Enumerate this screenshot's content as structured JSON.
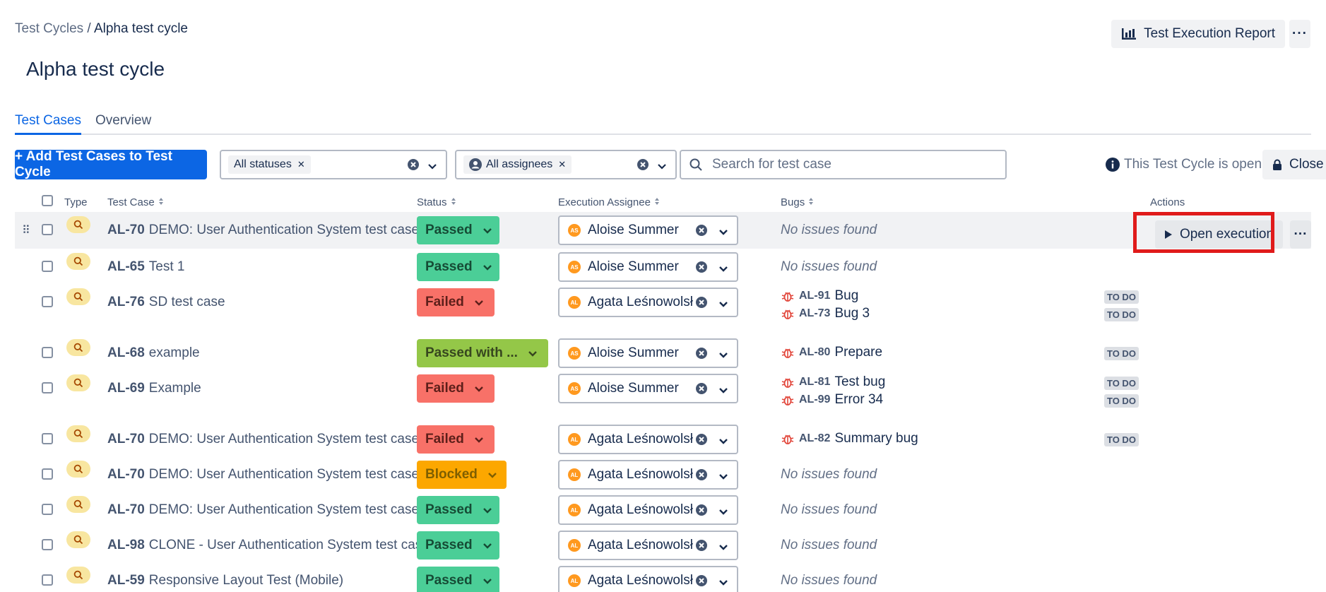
{
  "breadcrumb": {
    "parent": "Test Cycles",
    "separator": " / ",
    "current": "Alpha test cycle"
  },
  "page_title": "Alpha test cycle",
  "header_actions": {
    "report_label": "Test Execution Report",
    "more_label": "···"
  },
  "tabs": [
    {
      "label": "Test Cases",
      "active": true
    },
    {
      "label": "Overview",
      "active": false
    }
  ],
  "toolbar": {
    "add_label": "+ Add Test Cases to Test Cycle",
    "status_filter_chip": "All statuses",
    "assignee_filter_chip": "All assignees",
    "search_placeholder": "Search for test case",
    "open_info": "This Test Cycle is open",
    "close_label": "Close"
  },
  "columns": {
    "type": "Type",
    "test_case": "Test Case",
    "status": "Status",
    "assignee": "Execution Assignee",
    "bugs": "Bugs",
    "actions": "Actions"
  },
  "status_colors": {
    "Passed": "#4bce97",
    "Failed": "#f87168",
    "Passed with ...": "#94c748",
    "Blocked": "#fca700"
  },
  "no_issues_text": "No issues found",
  "open_execution_label": "Open execution",
  "rows": [
    {
      "key": "AL-70",
      "name": "DEMO: User Authentication System test case",
      "status": "Passed",
      "assignee": "Aloise Summer",
      "initials": "AS",
      "bugs": []
    },
    {
      "key": "AL-65",
      "name": "Test 1",
      "status": "Passed",
      "assignee": "Aloise Summer",
      "initials": "AS",
      "bugs": []
    },
    {
      "key": "AL-76",
      "name": "SD test case",
      "status": "Failed",
      "assignee": "Agata Leśnowolsł",
      "initials": "AL",
      "bugs": [
        {
          "key": "AL-91",
          "title": "Bug",
          "state": "TO DO"
        },
        {
          "key": "AL-73",
          "title": "Bug 3",
          "state": "TO DO"
        }
      ]
    },
    {
      "key": "AL-68",
      "name": "example",
      "status": "Passed with ...",
      "assignee": "Aloise Summer",
      "initials": "AS",
      "bugs": [
        {
          "key": "AL-80",
          "title": "Prepare",
          "state": "TO DO"
        }
      ]
    },
    {
      "key": "AL-69",
      "name": "Example",
      "status": "Failed",
      "assignee": "Aloise Summer",
      "initials": "AS",
      "bugs": [
        {
          "key": "AL-81",
          "title": "Test bug",
          "state": "TO DO"
        },
        {
          "key": "AL-99",
          "title": "Error 34",
          "state": "TO DO"
        }
      ]
    },
    {
      "key": "AL-70",
      "name": "DEMO: User Authentication System test case",
      "status": "Failed",
      "assignee": "Agata Leśnowolsł",
      "initials": "AL",
      "bugs": [
        {
          "key": "AL-82",
          "title": "Summary bug",
          "state": "TO DO"
        }
      ]
    },
    {
      "key": "AL-70",
      "name": "DEMO: User Authentication System test case",
      "status": "Blocked",
      "assignee": "Agata Leśnowolsł",
      "initials": "AL",
      "bugs": []
    },
    {
      "key": "AL-70",
      "name": "DEMO: User Authentication System test case",
      "status": "Passed",
      "assignee": "Agata Leśnowolsł",
      "initials": "AL",
      "bugs": []
    },
    {
      "key": "AL-98",
      "name": "CLONE - User Authentication System test case",
      "status": "Passed",
      "assignee": "Agata Leśnowolsł",
      "initials": "AL",
      "bugs": []
    },
    {
      "key": "AL-59",
      "name": "Responsive Layout Test (Mobile)",
      "status": "Passed",
      "assignee": "Agata Leśnowolsł",
      "initials": "AL",
      "bugs": []
    }
  ]
}
